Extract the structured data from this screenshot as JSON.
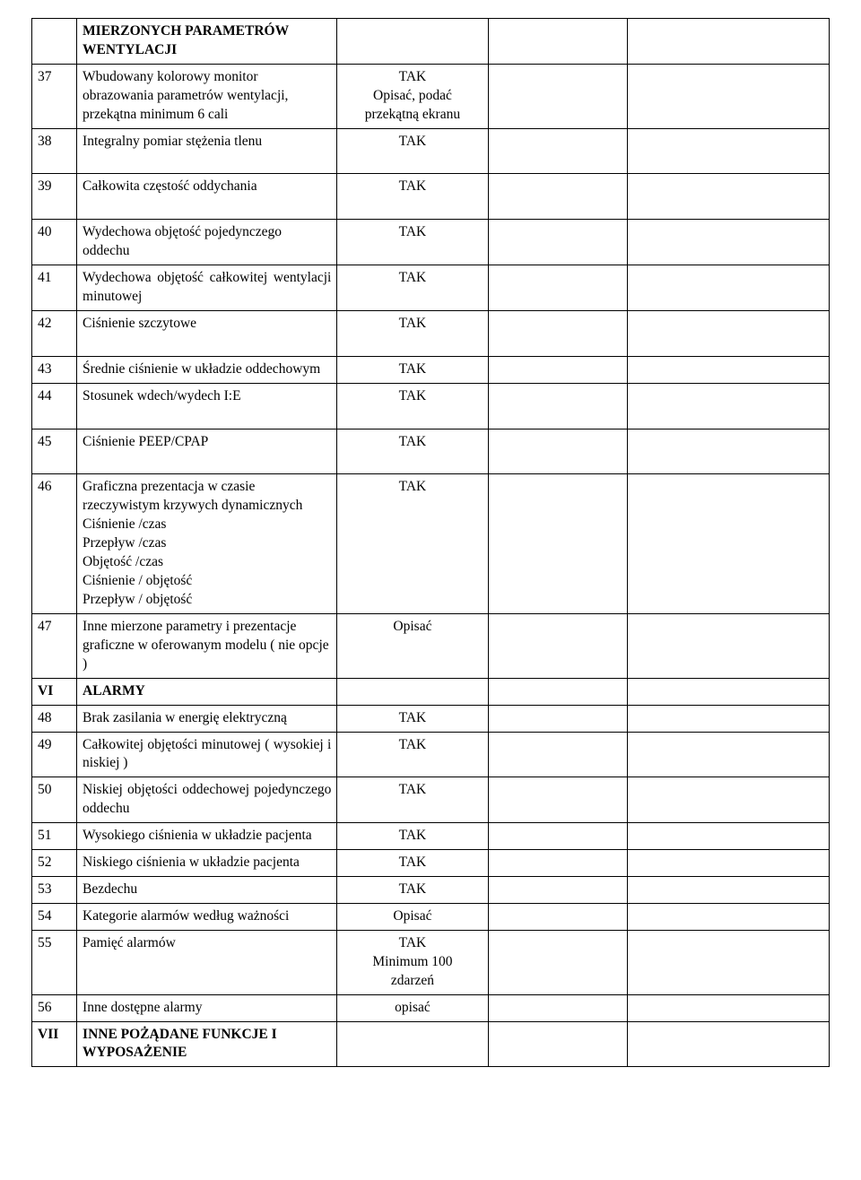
{
  "colors": {
    "text": "#000000",
    "border": "#000000",
    "background": "#ffffff"
  },
  "font": {
    "family": "Times New Roman",
    "size_pt": 12
  },
  "rows": [
    {
      "num": "",
      "desc": "MIERZONYCH PARAMETRÓW WENTYLACJI",
      "descBold": true,
      "req": "",
      "c4": "",
      "c5": ""
    },
    {
      "num": "37",
      "desc": "Wbudowany kolorowy monitor obrazowania parametrów wentylacji, przekątna minimum 6 cali",
      "descBold": false,
      "req": "TAK\nOpisać, podać\nprzekątną ekranu",
      "c4": "",
      "c5": ""
    },
    {
      "num": "38",
      "desc": "Integralny pomiar stężenia tlenu",
      "descBold": false,
      "reqPadBottom": true,
      "req": "TAK",
      "c4": "",
      "c5": ""
    },
    {
      "num": "39",
      "desc": "Całkowita częstość oddychania",
      "descBold": false,
      "reqPadBottom": true,
      "req": "TAK",
      "c4": "",
      "c5": ""
    },
    {
      "num": "40",
      "desc": "Wydechowa objętość pojedynczego oddechu",
      "descBold": false,
      "req": "TAK",
      "c4": "",
      "c5": ""
    },
    {
      "num": "41",
      "desc": "Wydechowa objętość całkowitej wentylacji minutowej",
      "descBold": false,
      "descJustify": true,
      "req": "TAK",
      "c4": "",
      "c5": ""
    },
    {
      "num": "42",
      "desc": "Ciśnienie szczytowe",
      "descBold": false,
      "reqPadBottom": true,
      "req": "TAK",
      "c4": "",
      "c5": ""
    },
    {
      "num": "43",
      "desc": "Średnie ciśnienie w układzie oddechowym",
      "descBold": false,
      "descJustify": true,
      "req": "TAK",
      "c4": "",
      "c5": ""
    },
    {
      "num": "44",
      "desc": "Stosunek wdech/wydech I:E",
      "descBold": false,
      "reqPadBottom": true,
      "req": "TAK",
      "c4": "",
      "c5": ""
    },
    {
      "num": "45",
      "desc": "Ciśnienie PEEP/CPAP",
      "descBold": false,
      "reqPadBottom": true,
      "req": "TAK",
      "c4": "",
      "c5": ""
    },
    {
      "num": "46",
      "desc": "Graficzna prezentacja w czasie rzeczywistym krzywych dynamicznych\nCiśnienie /czas\nPrzepływ /czas\nObjętość /czas\nCiśnienie / objętość\nPrzepływ / objętość",
      "descBold": false,
      "req": "TAK",
      "c4": "",
      "c5": ""
    },
    {
      "num": "47",
      "desc": "Inne mierzone parametry i prezentacje graficzne w oferowanym modelu ( nie opcje )",
      "descBold": false,
      "req": "Opisać",
      "c4": "",
      "c5": ""
    },
    {
      "num": "VI",
      "numBold": true,
      "desc": "ALARMY",
      "descBold": true,
      "reqPadBottom": true,
      "req": "",
      "c4": "",
      "c5": ""
    },
    {
      "num": "48",
      "desc": "Brak zasilania w energię elektryczną",
      "descBold": false,
      "req": "TAK",
      "c4": "",
      "c5": ""
    },
    {
      "num": "49",
      "desc": "Całkowitej objętości minutowej ( wysokiej i niskiej )",
      "descBold": false,
      "descJustify": true,
      "req": "TAK",
      "c4": "",
      "c5": ""
    },
    {
      "num": "50",
      "desc": "Niskiej objętości oddechowej pojedynczego oddechu",
      "descBold": false,
      "descJustify": true,
      "req": "TAK",
      "c4": "",
      "c5": ""
    },
    {
      "num": "51",
      "desc": "Wysokiego ciśnienia w układzie pacjenta",
      "descBold": false,
      "descJustify": true,
      "req": "TAK",
      "c4": "",
      "c5": ""
    },
    {
      "num": "52",
      "desc": "Niskiego ciśnienia w układzie pacjenta",
      "descBold": false,
      "descJustify": true,
      "req": "TAK",
      "c4": "",
      "c5": ""
    },
    {
      "num": "53",
      "desc": "Bezdechu",
      "descBold": false,
      "req": "TAK",
      "c4": "",
      "c5": ""
    },
    {
      "num": "54",
      "desc": "Kategorie alarmów według ważności",
      "descBold": false,
      "descJustify": true,
      "req": "Opisać",
      "c4": "",
      "c5": ""
    },
    {
      "num": "55",
      "desc": "Pamięć alarmów",
      "descBold": false,
      "req": "TAK\nMinimum 100\nzdarzeń",
      "c4": "",
      "c5": ""
    },
    {
      "num": "56",
      "desc": "Inne dostępne alarmy",
      "descBold": false,
      "req": "opisać",
      "c4": "",
      "c5": ""
    },
    {
      "num": "VII",
      "numBold": true,
      "desc": "INNE POŻĄDANE FUNKCJE I WYPOSAŻENIE",
      "descBold": true,
      "req": "",
      "c4": "",
      "c5": ""
    }
  ]
}
